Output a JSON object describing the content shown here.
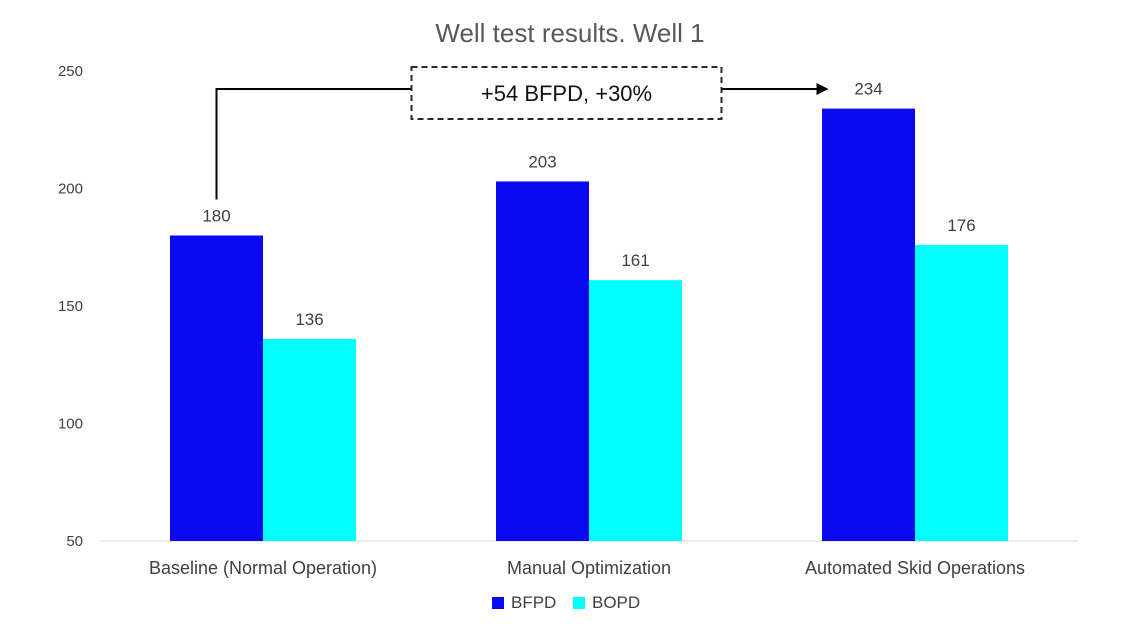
{
  "chart_data": {
    "type": "bar",
    "title": "Well test results. Well 1",
    "categories": [
      "Baseline (Normal Operation)",
      "Manual Optimization",
      "Automated Skid Operations"
    ],
    "series": [
      {
        "name": "BFPD",
        "color": "#0a0af0",
        "values": [
          180,
          203,
          234
        ]
      },
      {
        "name": "BOPD",
        "color": "#00ffff",
        "values": [
          136,
          161,
          176
        ]
      }
    ],
    "xlabel": "",
    "ylabel": "",
    "ylim": [
      50,
      250
    ],
    "yticks": [
      50,
      100,
      150,
      200,
      250
    ],
    "grid": false,
    "legend_position": "bottom-center",
    "annotation": {
      "text": "+54 BFPD, +30%",
      "from_category": 0,
      "to_category": 2,
      "series": "BFPD"
    }
  }
}
